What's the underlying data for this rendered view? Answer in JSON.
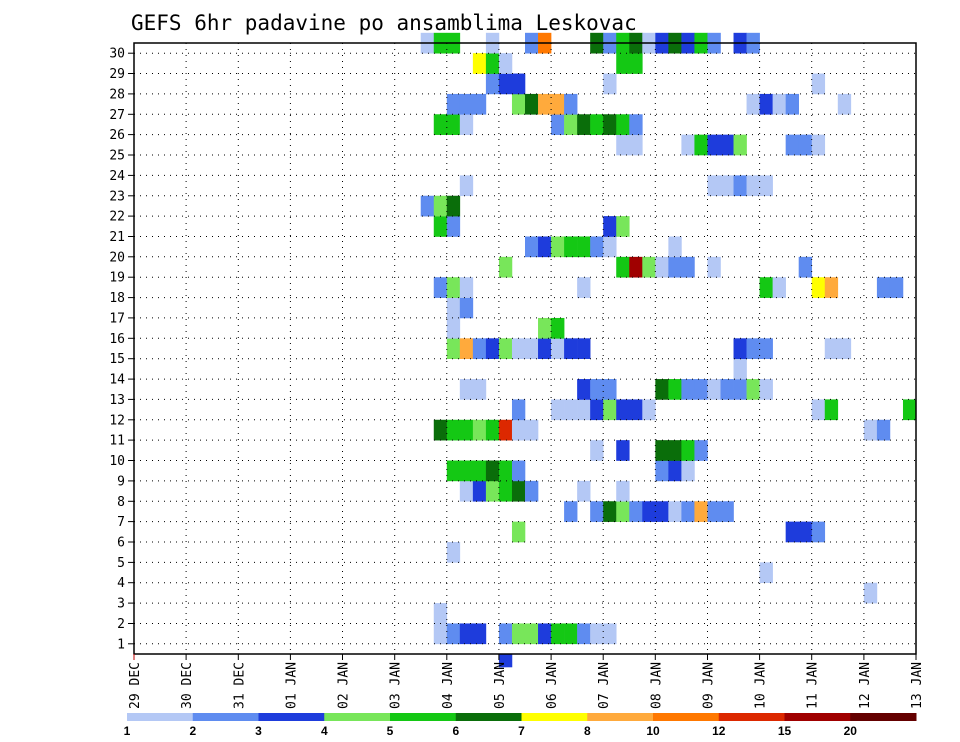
{
  "chart_data": {
    "type": "heatmap",
    "title": "GEFS 6hr padavine po ansamblima Leskovac",
    "x_tick_labels": [
      "29 DEC",
      "30 DEC",
      "31 DEC",
      "01 JAN",
      "02 JAN",
      "03 JAN",
      "04 JAN",
      "05 JAN",
      "06 JAN",
      "07 JAN",
      "08 JAN",
      "09 JAN",
      "10 JAN",
      "11 JAN",
      "12 JAN",
      "13 JAN"
    ],
    "y_tick_labels": [
      "1",
      "2",
      "3",
      "4",
      "5",
      "6",
      "7",
      "8",
      "9",
      "10",
      "11",
      "12",
      "13",
      "14",
      "15",
      "16",
      "17",
      "18",
      "19",
      "20",
      "21",
      "22",
      "23",
      "24",
      "25",
      "26",
      "27",
      "28",
      "29",
      "30"
    ],
    "x_range_days": [
      0,
      15
    ],
    "y_range_members": [
      0,
      30
    ],
    "step_days": 0.25,
    "grid": true,
    "colorbar": {
      "labels": [
        "1",
        "2",
        "3",
        "4",
        "5",
        "6",
        "7",
        "8",
        "10",
        "12",
        "15",
        "20"
      ],
      "colors": [
        "#b4c8f5",
        "#5f8cf0",
        "#1e3cdc",
        "#78e65a",
        "#14c814",
        "#0a6e0a",
        "#ffff00",
        "#ffaa3c",
        "#ff7800",
        "#dc2800",
        "#a00000",
        "#640000"
      ]
    },
    "cells": [
      {
        "m": 1,
        "t": 5.75,
        "c": 0
      },
      {
        "m": 1,
        "t": 6.0,
        "c": 1
      },
      {
        "m": 1,
        "t": 6.25,
        "c": 2
      },
      {
        "m": 1,
        "t": 6.5,
        "c": 2
      },
      {
        "m": 1,
        "t": 7.0,
        "c": 1
      },
      {
        "m": 1,
        "t": 7.25,
        "c": 3
      },
      {
        "m": 1,
        "t": 7.5,
        "c": 3
      },
      {
        "m": 1,
        "t": 7.75,
        "c": 2
      },
      {
        "m": 1,
        "t": 8.0,
        "c": 4
      },
      {
        "m": 1,
        "t": 8.25,
        "c": 4
      },
      {
        "m": 1,
        "t": 8.5,
        "c": 1
      },
      {
        "m": 1,
        "t": 8.75,
        "c": 0
      },
      {
        "m": 1,
        "t": 9.0,
        "c": 0
      },
      {
        "m": 2,
        "t": 5.75,
        "c": 0
      },
      {
        "m": 3,
        "t": 14.0,
        "c": 0
      },
      {
        "m": 4,
        "t": 12.0,
        "c": 0
      },
      {
        "m": 5,
        "t": 6.0,
        "c": 0
      },
      {
        "m": 6,
        "t": 7.25,
        "c": 3
      },
      {
        "m": 6,
        "t": 12.5,
        "c": 2
      },
      {
        "m": 6,
        "t": 12.75,
        "c": 2
      },
      {
        "m": 6,
        "t": 13.0,
        "c": 1
      },
      {
        "m": 7,
        "t": 8.25,
        "c": 1
      },
      {
        "m": 7,
        "t": 8.75,
        "c": 1
      },
      {
        "m": 7,
        "t": 9.0,
        "c": 5
      },
      {
        "m": 7,
        "t": 9.25,
        "c": 3
      },
      {
        "m": 7,
        "t": 9.5,
        "c": 1
      },
      {
        "m": 7,
        "t": 9.75,
        "c": 2
      },
      {
        "m": 7,
        "t": 10.0,
        "c": 2
      },
      {
        "m": 7,
        "t": 10.25,
        "c": 0
      },
      {
        "m": 7,
        "t": 10.5,
        "c": 1
      },
      {
        "m": 7,
        "t": 10.75,
        "c": 7
      },
      {
        "m": 7,
        "t": 11.0,
        "c": 1
      },
      {
        "m": 7,
        "t": 11.25,
        "c": 1
      },
      {
        "m": 8,
        "t": 6.25,
        "c": 0
      },
      {
        "m": 8,
        "t": 6.5,
        "c": 2
      },
      {
        "m": 8,
        "t": 6.75,
        "c": 3
      },
      {
        "m": 8,
        "t": 7.0,
        "c": 4
      },
      {
        "m": 8,
        "t": 7.25,
        "c": 5
      },
      {
        "m": 8,
        "t": 7.5,
        "c": 1
      },
      {
        "m": 8,
        "t": 8.5,
        "c": 0
      },
      {
        "m": 8,
        "t": 9.25,
        "c": 0
      },
      {
        "m": 9,
        "t": 6.0,
        "c": 4
      },
      {
        "m": 9,
        "t": 6.25,
        "c": 4
      },
      {
        "m": 9,
        "t": 6.5,
        "c": 4
      },
      {
        "m": 9,
        "t": 6.75,
        "c": 5
      },
      {
        "m": 9,
        "t": 7.0,
        "c": 4
      },
      {
        "m": 9,
        "t": 7.25,
        "c": 1
      },
      {
        "m": 9,
        "t": 10.0,
        "c": 1
      },
      {
        "m": 9,
        "t": 10.25,
        "c": 2
      },
      {
        "m": 9,
        "t": 10.5,
        "c": 0
      },
      {
        "m": 10,
        "t": 8.75,
        "c": 0
      },
      {
        "m": 10,
        "t": 9.25,
        "c": 2
      },
      {
        "m": 10,
        "t": 10.0,
        "c": 5
      },
      {
        "m": 10,
        "t": 10.25,
        "c": 5
      },
      {
        "m": 10,
        "t": 10.5,
        "c": 4
      },
      {
        "m": 10,
        "t": 10.75,
        "c": 1
      },
      {
        "m": 11,
        "t": 5.75,
        "c": 5
      },
      {
        "m": 11,
        "t": 6.0,
        "c": 4
      },
      {
        "m": 11,
        "t": 6.25,
        "c": 4
      },
      {
        "m": 11,
        "t": 6.5,
        "c": 3
      },
      {
        "m": 11,
        "t": 6.75,
        "c": 4
      },
      {
        "m": 11,
        "t": 7.0,
        "c": 9
      },
      {
        "m": 11,
        "t": 7.25,
        "c": 0
      },
      {
        "m": 11,
        "t": 7.5,
        "c": 0
      },
      {
        "m": 11,
        "t": 14.0,
        "c": 0
      },
      {
        "m": 11,
        "t": 14.25,
        "c": 1
      },
      {
        "m": 12,
        "t": 7.25,
        "c": 1
      },
      {
        "m": 12,
        "t": 8.0,
        "c": 0
      },
      {
        "m": 12,
        "t": 8.25,
        "c": 0
      },
      {
        "m": 12,
        "t": 8.5,
        "c": 0
      },
      {
        "m": 12,
        "t": 8.75,
        "c": 2
      },
      {
        "m": 12,
        "t": 9.0,
        "c": 3
      },
      {
        "m": 12,
        "t": 9.25,
        "c": 2
      },
      {
        "m": 12,
        "t": 9.5,
        "c": 2
      },
      {
        "m": 12,
        "t": 9.75,
        "c": 0
      },
      {
        "m": 12,
        "t": 13.0,
        "c": 0
      },
      {
        "m": 12,
        "t": 13.25,
        "c": 4
      },
      {
        "m": 12,
        "t": 14.75,
        "c": 4
      },
      {
        "m": 13,
        "t": 6.25,
        "c": 0
      },
      {
        "m": 13,
        "t": 6.5,
        "c": 0
      },
      {
        "m": 13,
        "t": 8.5,
        "c": 2
      },
      {
        "m": 13,
        "t": 8.75,
        "c": 1
      },
      {
        "m": 13,
        "t": 9.0,
        "c": 1
      },
      {
        "m": 13,
        "t": 10.0,
        "c": 5
      },
      {
        "m": 13,
        "t": 10.25,
        "c": 4
      },
      {
        "m": 13,
        "t": 10.5,
        "c": 1
      },
      {
        "m": 13,
        "t": 10.75,
        "c": 1
      },
      {
        "m": 13,
        "t": 11.0,
        "c": 0
      },
      {
        "m": 13,
        "t": 11.25,
        "c": 1
      },
      {
        "m": 13,
        "t": 11.5,
        "c": 1
      },
      {
        "m": 13,
        "t": 11.75,
        "c": 3
      },
      {
        "m": 13,
        "t": 12.0,
        "c": 0
      },
      {
        "m": 14,
        "t": 11.5,
        "c": 0
      },
      {
        "m": 15,
        "t": 6.0,
        "c": 3
      },
      {
        "m": 15,
        "t": 6.25,
        "c": 7
      },
      {
        "m": 15,
        "t": 6.5,
        "c": 1
      },
      {
        "m": 15,
        "t": 6.75,
        "c": 2
      },
      {
        "m": 15,
        "t": 7.0,
        "c": 3
      },
      {
        "m": 15,
        "t": 7.25,
        "c": 0
      },
      {
        "m": 15,
        "t": 7.5,
        "c": 0
      },
      {
        "m": 15,
        "t": 7.75,
        "c": 2
      },
      {
        "m": 15,
        "t": 8.0,
        "c": 0
      },
      {
        "m": 15,
        "t": 8.25,
        "c": 2
      },
      {
        "m": 15,
        "t": 8.5,
        "c": 2
      },
      {
        "m": 15,
        "t": 11.5,
        "c": 2
      },
      {
        "m": 15,
        "t": 11.75,
        "c": 1
      },
      {
        "m": 15,
        "t": 12.0,
        "c": 1
      },
      {
        "m": 15,
        "t": 13.25,
        "c": 0
      },
      {
        "m": 15,
        "t": 13.5,
        "c": 0
      },
      {
        "m": 16,
        "t": 6.0,
        "c": 0
      },
      {
        "m": 16,
        "t": 7.75,
        "c": 3
      },
      {
        "m": 16,
        "t": 8.0,
        "c": 4
      },
      {
        "m": 17,
        "t": 6.0,
        "c": 0
      },
      {
        "m": 17,
        "t": 6.25,
        "c": 1
      },
      {
        "m": 18,
        "t": 5.75,
        "c": 1
      },
      {
        "m": 18,
        "t": 6.0,
        "c": 3
      },
      {
        "m": 18,
        "t": 6.25,
        "c": 0
      },
      {
        "m": 18,
        "t": 8.5,
        "c": 0
      },
      {
        "m": 18,
        "t": 12.0,
        "c": 4
      },
      {
        "m": 18,
        "t": 12.25,
        "c": 0
      },
      {
        "m": 18,
        "t": 13.0,
        "c": 6
      },
      {
        "m": 18,
        "t": 13.25,
        "c": 7
      },
      {
        "m": 18,
        "t": 14.25,
        "c": 1
      },
      {
        "m": 18,
        "t": 14.5,
        "c": 1
      },
      {
        "m": 19,
        "t": 7.0,
        "c": 3
      },
      {
        "m": 19,
        "t": 9.25,
        "c": 4
      },
      {
        "m": 19,
        "t": 9.5,
        "c": 10
      },
      {
        "m": 19,
        "t": 9.75,
        "c": 3
      },
      {
        "m": 19,
        "t": 10.0,
        "c": 0
      },
      {
        "m": 19,
        "t": 10.25,
        "c": 1
      },
      {
        "m": 19,
        "t": 10.5,
        "c": 1
      },
      {
        "m": 19,
        "t": 11.0,
        "c": 0
      },
      {
        "m": 19,
        "t": 12.75,
        "c": 1
      },
      {
        "m": 20,
        "t": 7.5,
        "c": 1
      },
      {
        "m": 20,
        "t": 7.75,
        "c": 2
      },
      {
        "m": 20,
        "t": 8.0,
        "c": 3
      },
      {
        "m": 20,
        "t": 8.25,
        "c": 4
      },
      {
        "m": 20,
        "t": 8.5,
        "c": 4
      },
      {
        "m": 20,
        "t": 8.75,
        "c": 1
      },
      {
        "m": 20,
        "t": 9.0,
        "c": 0
      },
      {
        "m": 20,
        "t": 10.25,
        "c": 0
      },
      {
        "m": 21,
        "t": 5.75,
        "c": 4
      },
      {
        "m": 21,
        "t": 6.0,
        "c": 1
      },
      {
        "m": 21,
        "t": 9.0,
        "c": 2
      },
      {
        "m": 21,
        "t": 9.25,
        "c": 3
      },
      {
        "m": 22,
        "t": 5.5,
        "c": 1
      },
      {
        "m": 22,
        "t": 5.75,
        "c": 3
      },
      {
        "m": 22,
        "t": 6.0,
        "c": 5
      },
      {
        "m": 23,
        "t": 6.25,
        "c": 0
      },
      {
        "m": 23,
        "t": 11.0,
        "c": 0
      },
      {
        "m": 23,
        "t": 11.25,
        "c": 0
      },
      {
        "m": 23,
        "t": 11.5,
        "c": 1
      },
      {
        "m": 23,
        "t": 11.75,
        "c": 0
      },
      {
        "m": 23,
        "t": 12.0,
        "c": 0
      },
      {
        "m": 25,
        "t": 9.25,
        "c": 0
      },
      {
        "m": 25,
        "t": 9.5,
        "c": 0
      },
      {
        "m": 25,
        "t": 10.5,
        "c": 0
      },
      {
        "m": 25,
        "t": 10.75,
        "c": 4
      },
      {
        "m": 25,
        "t": 11.0,
        "c": 2
      },
      {
        "m": 25,
        "t": 11.25,
        "c": 2
      },
      {
        "m": 25,
        "t": 11.5,
        "c": 3
      },
      {
        "m": 25,
        "t": 12.5,
        "c": 1
      },
      {
        "m": 25,
        "t": 12.75,
        "c": 1
      },
      {
        "m": 25,
        "t": 13.0,
        "c": 0
      },
      {
        "m": 26,
        "t": 5.75,
        "c": 4
      },
      {
        "m": 26,
        "t": 6.0,
        "c": 4
      },
      {
        "m": 26,
        "t": 6.25,
        "c": 0
      },
      {
        "m": 26,
        "t": 8.0,
        "c": 1
      },
      {
        "m": 26,
        "t": 8.25,
        "c": 3
      },
      {
        "m": 26,
        "t": 8.5,
        "c": 5
      },
      {
        "m": 26,
        "t": 8.75,
        "c": 4
      },
      {
        "m": 26,
        "t": 9.0,
        "c": 5
      },
      {
        "m": 26,
        "t": 9.25,
        "c": 4
      },
      {
        "m": 26,
        "t": 9.5,
        "c": 1
      },
      {
        "m": 27,
        "t": 6.0,
        "c": 1
      },
      {
        "m": 27,
        "t": 6.25,
        "c": 1
      },
      {
        "m": 27,
        "t": 6.5,
        "c": 1
      },
      {
        "m": 27,
        "t": 7.25,
        "c": 3
      },
      {
        "m": 27,
        "t": 7.5,
        "c": 5
      },
      {
        "m": 27,
        "t": 7.75,
        "c": 7
      },
      {
        "m": 27,
        "t": 8.0,
        "c": 7
      },
      {
        "m": 27,
        "t": 8.25,
        "c": 1
      },
      {
        "m": 27,
        "t": 11.75,
        "c": 0
      },
      {
        "m": 27,
        "t": 12.0,
        "c": 2
      },
      {
        "m": 27,
        "t": 12.25,
        "c": 0
      },
      {
        "m": 27,
        "t": 12.5,
        "c": 1
      },
      {
        "m": 27,
        "t": 13.5,
        "c": 0
      },
      {
        "m": 28,
        "t": 6.75,
        "c": 1
      },
      {
        "m": 28,
        "t": 7.0,
        "c": 2
      },
      {
        "m": 28,
        "t": 7.25,
        "c": 2
      },
      {
        "m": 28,
        "t": 9.0,
        "c": 0
      },
      {
        "m": 28,
        "t": 13.0,
        "c": 0
      },
      {
        "m": 29,
        "t": 6.5,
        "c": 6
      },
      {
        "m": 29,
        "t": 6.75,
        "c": 4
      },
      {
        "m": 29,
        "t": 7.0,
        "c": 0
      },
      {
        "m": 29,
        "t": 9.25,
        "c": 4
      },
      {
        "m": 29,
        "t": 9.5,
        "c": 4
      },
      {
        "m": 30,
        "t": 5.5,
        "c": 0
      },
      {
        "m": 30,
        "t": 5.75,
        "c": 4
      },
      {
        "m": 30,
        "t": 6.0,
        "c": 4
      },
      {
        "m": 30,
        "t": 6.75,
        "c": 0
      },
      {
        "m": 30,
        "t": 7.5,
        "c": 1
      },
      {
        "m": 30,
        "t": 7.75,
        "c": 8
      },
      {
        "m": 30,
        "t": 8.75,
        "c": 5
      },
      {
        "m": 30,
        "t": 9.0,
        "c": 1
      },
      {
        "m": 30,
        "t": 9.25,
        "c": 4
      },
      {
        "m": 30,
        "t": 9.5,
        "c": 5
      },
      {
        "m": 30,
        "t": 9.75,
        "c": 0
      },
      {
        "m": 30,
        "t": 10.0,
        "c": 2
      },
      {
        "m": 30,
        "t": 10.25,
        "c": 5
      },
      {
        "m": 30,
        "t": 10.5,
        "c": 2
      },
      {
        "m": 30,
        "t": 10.75,
        "c": 4
      },
      {
        "m": 30,
        "t": 11.0,
        "c": 1
      },
      {
        "m": 30,
        "t": 11.5,
        "c": 2
      },
      {
        "m": 30,
        "t": 11.75,
        "c": 1
      },
      {
        "m": 0,
        "t": 7.0,
        "c": 2
      }
    ]
  }
}
